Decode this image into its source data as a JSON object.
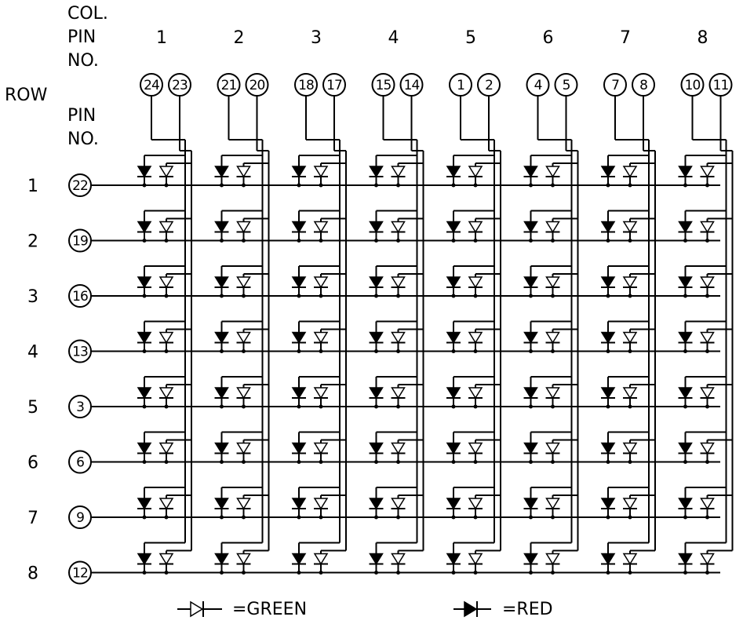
{
  "header": {
    "col_pin_no_lines": [
      "COL.",
      "PIN",
      "NO."
    ],
    "row_label": "ROW",
    "row_pin_no_lines": [
      "PIN",
      "NO."
    ]
  },
  "columns": [
    {
      "number": "1",
      "red_pin": "24",
      "green_pin": "23"
    },
    {
      "number": "2",
      "red_pin": "21",
      "green_pin": "20"
    },
    {
      "number": "3",
      "red_pin": "18",
      "green_pin": "17"
    },
    {
      "number": "4",
      "red_pin": "15",
      "green_pin": "14"
    },
    {
      "number": "5",
      "red_pin": "1",
      "green_pin": "2"
    },
    {
      "number": "6",
      "red_pin": "4",
      "green_pin": "5"
    },
    {
      "number": "7",
      "red_pin": "7",
      "green_pin": "8"
    },
    {
      "number": "8",
      "red_pin": "10",
      "green_pin": "11"
    }
  ],
  "rows": [
    {
      "number": "1",
      "pin": "22"
    },
    {
      "number": "2",
      "pin": "19"
    },
    {
      "number": "3",
      "pin": "16"
    },
    {
      "number": "4",
      "pin": "13"
    },
    {
      "number": "5",
      "pin": "3"
    },
    {
      "number": "6",
      "pin": "6"
    },
    {
      "number": "7",
      "pin": "9"
    },
    {
      "number": "8",
      "pin": "12"
    }
  ],
  "legend": {
    "green_label": "=GREEN",
    "red_label": "=RED"
  }
}
